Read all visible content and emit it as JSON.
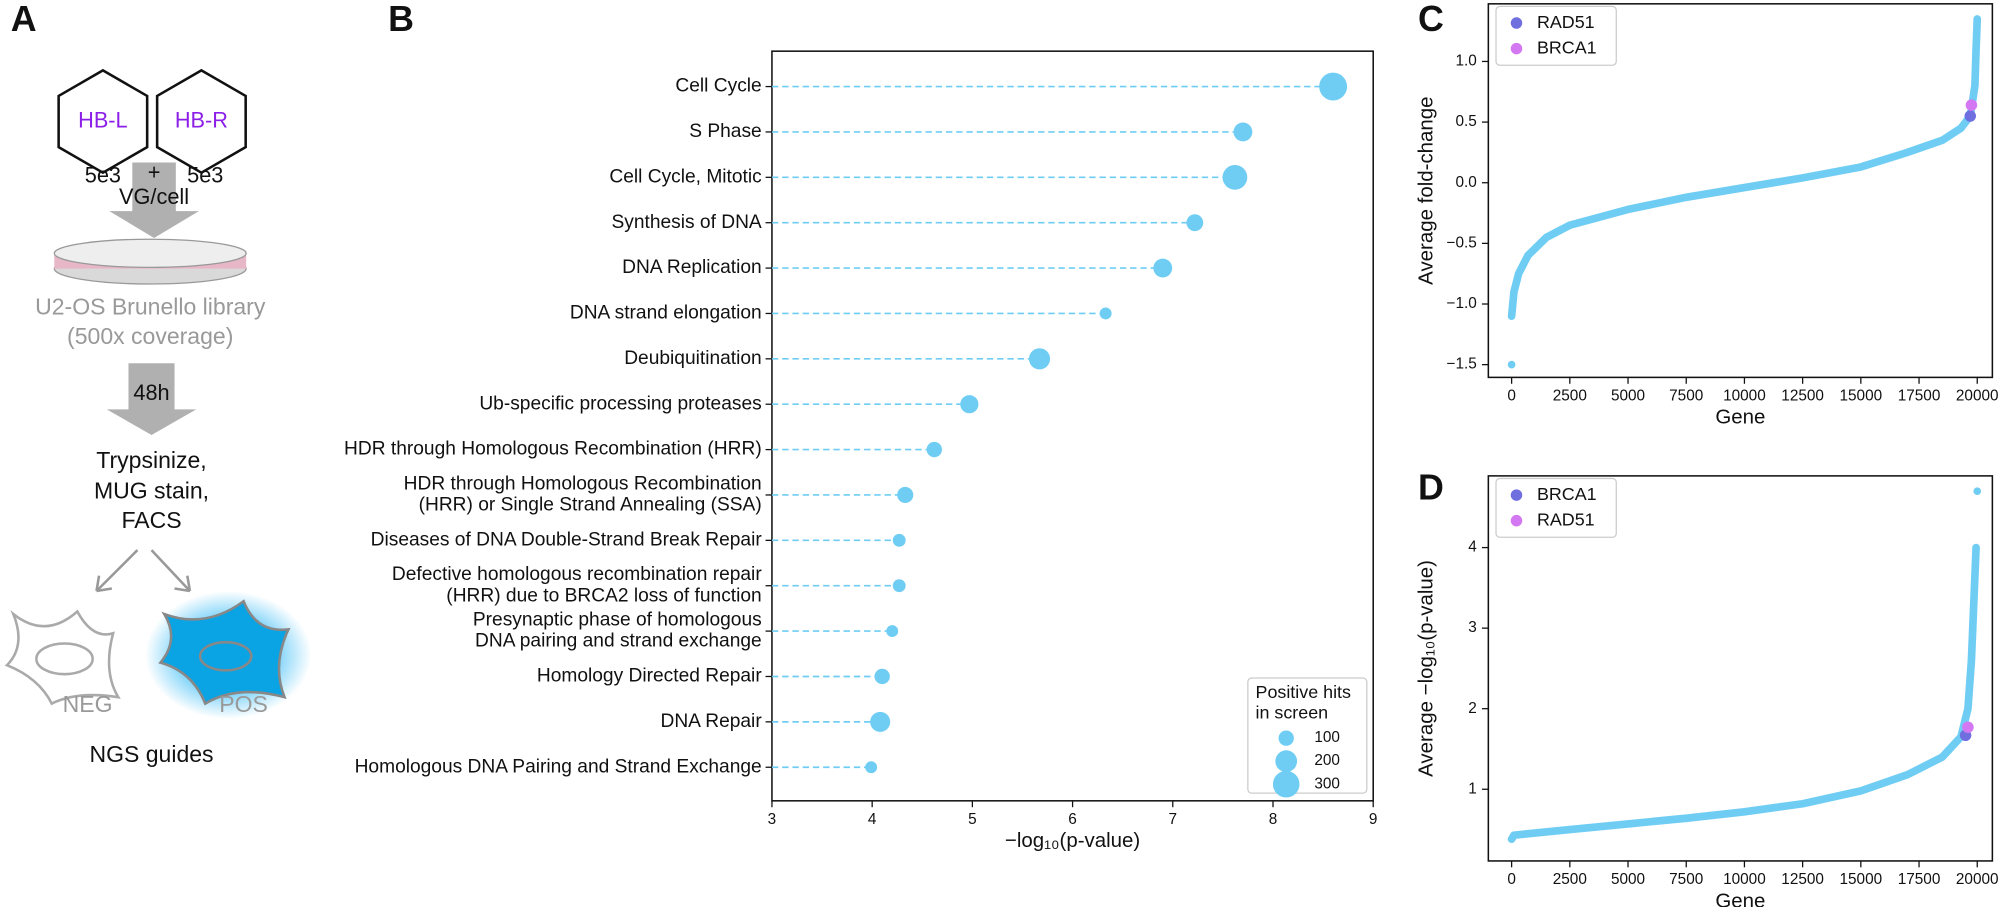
{
  "diagram": {
    "panel_label": "A",
    "vector_left": "HB-L",
    "vector_right": "HB-R",
    "dose_left": "5e3",
    "plus": "+",
    "dose_right": "5e3",
    "dose_unit": "VG/cell",
    "library": "U2-OS Brunello library",
    "coverage": "(500x coverage)",
    "time": "48h",
    "steps": [
      "Trypsinize,",
      "MUG stain,",
      "FACS"
    ],
    "neg": "NEG",
    "pos": "POS",
    "readout": "NGS guides"
  },
  "chart_data": [
    {
      "type": "lollipop",
      "label": "B",
      "categories": [
        "Cell Cycle",
        "S Phase",
        "Cell Cycle, Mitotic",
        "Synthesis of DNA",
        "DNA Replication",
        "DNA strand elongation",
        "Deubiquitination",
        "Ub-specific processing proteases",
        "HDR through Homologous Recombination (HRR)",
        "HDR through Homologous Recombination\n(HRR) or Single Strand Annealing (SSA)",
        "Diseases of DNA Double-Strand Break Repair",
        "Defective homologous recombination repair\n(HRR) due to BRCA2 loss of function",
        "Presynaptic phase of homologous\nDNA pairing and strand exchange",
        "Homology Directed Repair",
        "DNA Repair",
        "Homologous DNA Pairing and Strand Exchange"
      ],
      "values": [
        8.6,
        7.7,
        7.62,
        7.22,
        6.9,
        6.33,
        5.67,
        4.97,
        4.62,
        4.33,
        4.27,
        4.27,
        4.2,
        4.1,
        4.08,
        3.99
      ],
      "sizes": [
        330,
        150,
        260,
        120,
        150,
        60,
        190,
        140,
        100,
        110,
        70,
        70,
        60,
        100,
        170,
        60
      ],
      "color": "#6fcdf4",
      "xlim": [
        3,
        9
      ],
      "xticks": [
        3,
        4,
        5,
        6,
        7,
        8,
        9
      ],
      "xlabel": "−log₁₀(p-value)",
      "size_legend": {
        "title": [
          "Positive hits",
          "in screen"
        ],
        "values": [
          100,
          200,
          300
        ]
      },
      "legend": "lower right"
    },
    {
      "type": "scatter",
      "label": "C",
      "x": [
        0,
        100,
        300,
        700,
        1500,
        2500,
        5000,
        7500,
        10000,
        12500,
        15000,
        17000,
        18500,
        19300,
        19700,
        19900,
        19950,
        20000
      ],
      "values": [
        -1.1,
        -0.9,
        -0.75,
        -0.6,
        -0.45,
        -0.35,
        -0.22,
        -0.12,
        -0.04,
        0.04,
        0.13,
        0.25,
        0.35,
        0.45,
        0.55,
        0.8,
        1.1,
        1.35
      ],
      "outliers": {
        "x": [
          0
        ],
        "values": [
          -1.5
        ]
      },
      "color": "#6fcdf4",
      "highlights": [
        {
          "name": "RAD51",
          "color": "#6f6fe0",
          "x": 19700,
          "y": 0.55
        },
        {
          "name": "BRCA1",
          "color": "#d477f2",
          "x": 19750,
          "y": 0.64
        }
      ],
      "xlim": [
        -1000,
        20650
      ],
      "xticks": [
        0,
        2500,
        5000,
        7500,
        10000,
        12500,
        15000,
        17500,
        20000
      ],
      "ylim": [
        -1.605,
        1.475
      ],
      "yticks": [
        {
          "value": -1.5,
          "label": "−1.5"
        },
        {
          "value": -1,
          "label": "−1.0"
        },
        {
          "value": -0.5,
          "label": "−0.5"
        },
        {
          "value": 0,
          "label": "0.0"
        },
        {
          "value": 0.5,
          "label": "0.5"
        },
        {
          "value": 1,
          "label": "1.0"
        }
      ],
      "xlabel": "Gene",
      "ylabel": "Average fold-change",
      "legend": "upper left"
    },
    {
      "type": "scatter",
      "label": "D",
      "x": [
        0,
        100,
        2500,
        5000,
        7500,
        10000,
        12500,
        15000,
        17000,
        18500,
        19300,
        19600,
        19750,
        19850,
        19950
      ],
      "values": [
        0.38,
        0.43,
        0.5,
        0.57,
        0.64,
        0.72,
        0.82,
        0.98,
        1.18,
        1.4,
        1.65,
        2.0,
        2.6,
        3.3,
        4.0
      ],
      "outliers": {
        "x": [
          20000
        ],
        "values": [
          4.7
        ]
      },
      "color": "#6fcdf4",
      "highlights": [
        {
          "name": "BRCA1",
          "color": "#6f6fe0",
          "x": 19500,
          "y": 1.67
        },
        {
          "name": "RAD51",
          "color": "#d477f2",
          "x": 19600,
          "y": 1.77
        }
      ],
      "xlim": [
        -1000,
        20650
      ],
      "xticks": [
        0,
        2500,
        5000,
        7500,
        10000,
        12500,
        15000,
        17500,
        20000
      ],
      "ylim": [
        0.11,
        4.89
      ],
      "yticks": [
        1,
        2,
        3,
        4
      ],
      "xlabel": "Gene",
      "ylabel": "Average −log₁₀(p-value)",
      "legend": "upper left"
    }
  ]
}
